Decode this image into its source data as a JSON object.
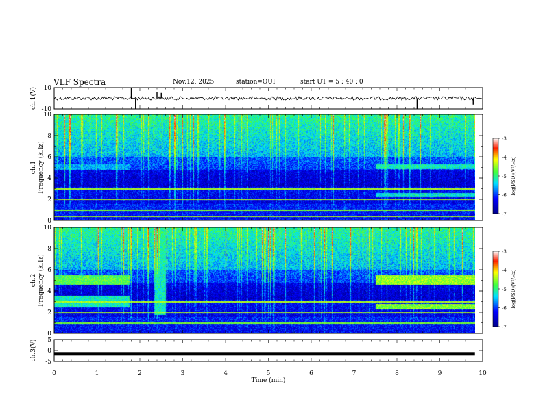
{
  "header": {
    "title": "VLF Spectra",
    "date": "Nov.12, 2025",
    "station": "station=OUI",
    "start": "start UT =  5 : 40 : 0"
  },
  "colors": {
    "background": "#ffffff",
    "axis": "#000000"
  },
  "chart_data": [
    {
      "type": "line",
      "name": "ch1-waveform",
      "ylabel": "ch.1(V)",
      "ylim": [
        -10,
        10
      ],
      "yticks": [
        "10",
        "-10"
      ],
      "x_range": [
        0,
        10
      ],
      "baseline": 0,
      "spikes": [
        {
          "x": 1.8,
          "y": 10
        },
        {
          "x": 1.9,
          "y": -10
        },
        {
          "x": 2.4,
          "y": 6
        },
        {
          "x": 2.5,
          "y": 5
        },
        {
          "x": 8.47,
          "y": -10
        },
        {
          "x": 9.78,
          "y": -6
        }
      ]
    },
    {
      "type": "heatmap",
      "name": "ch1-spectrogram",
      "ylabel": "ch.1 Frequency (kHz)",
      "ylim": [
        0,
        10
      ],
      "yticks": [
        "0",
        "2",
        "4",
        "6",
        "8",
        "10"
      ],
      "x_range": [
        0,
        9.82
      ],
      "colorbar": {
        "label": "log(PSD)(V²/Hz)",
        "ticks": [
          "-3",
          "-4",
          "-5",
          "-6",
          "-7"
        ],
        "range": [
          -7,
          -3
        ]
      },
      "features": [
        {
          "kind": "band",
          "x": [
            0,
            1.75
          ],
          "f": [
            4.8,
            5.3
          ],
          "value": -5.6
        },
        {
          "kind": "band",
          "x": [
            7.5,
            9.82
          ],
          "f": [
            4.9,
            5.3
          ],
          "value": -5.2
        },
        {
          "kind": "band",
          "x": [
            7.5,
            9.82
          ],
          "f": [
            2.2,
            2.6
          ],
          "value": -5.3
        },
        {
          "kind": "hline",
          "f": 3.0,
          "value": -4.4
        },
        {
          "kind": "hline",
          "f": 2.0,
          "value": -4.4
        },
        {
          "kind": "hline",
          "f": 1.0,
          "value": -4.6
        },
        {
          "kind": "hline",
          "f": 0.4,
          "value": -4.4
        }
      ]
    },
    {
      "type": "heatmap",
      "name": "ch2-spectrogram",
      "ylabel": "ch.2 Frequency (kHz)",
      "ylim": [
        0,
        10
      ],
      "yticks": [
        "0",
        "2",
        "4",
        "6",
        "8",
        "10"
      ],
      "x_range": [
        0,
        9.82
      ],
      "colorbar": {
        "label": "log(PSD)(V²/Hz)",
        "ticks": [
          "-3",
          "-4",
          "-5",
          "-6",
          "-7"
        ],
        "range": [
          -7,
          -3
        ]
      },
      "features": [
        {
          "kind": "band",
          "x": [
            0,
            1.75
          ],
          "f": [
            4.6,
            5.5
          ],
          "value": -4.8
        },
        {
          "kind": "band",
          "x": [
            0,
            1.75
          ],
          "f": [
            2.5,
            3.6
          ],
          "value": -5.2
        },
        {
          "kind": "band",
          "x": [
            7.5,
            9.82
          ],
          "f": [
            4.6,
            5.5
          ],
          "value": -4.5
        },
        {
          "kind": "band",
          "x": [
            7.5,
            9.82
          ],
          "f": [
            2.3,
            2.8
          ],
          "value": -4.6
        },
        {
          "kind": "band",
          "x": [
            2.35,
            2.6
          ],
          "f": [
            1.8,
            9.6
          ],
          "value": -5.2
        },
        {
          "kind": "hline",
          "f": 3.0,
          "value": -4.4
        },
        {
          "kind": "hline",
          "f": 2.0,
          "value": -4.4
        },
        {
          "kind": "hline",
          "f": 1.0,
          "value": -4.6
        }
      ]
    },
    {
      "type": "line",
      "name": "ch3-waveform",
      "ylabel": "ch.3(V)",
      "ylim": [
        -5,
        5
      ],
      "yticks": [
        "5",
        "0",
        "-5"
      ],
      "x_range": [
        0,
        9.82
      ],
      "baseline": -1.5
    }
  ],
  "xaxis": {
    "label": "Time (min)",
    "ticks": [
      "0",
      "1",
      "2",
      "3",
      "4",
      "5",
      "6",
      "7",
      "8",
      "9",
      "10"
    ],
    "range": [
      0,
      10
    ]
  }
}
